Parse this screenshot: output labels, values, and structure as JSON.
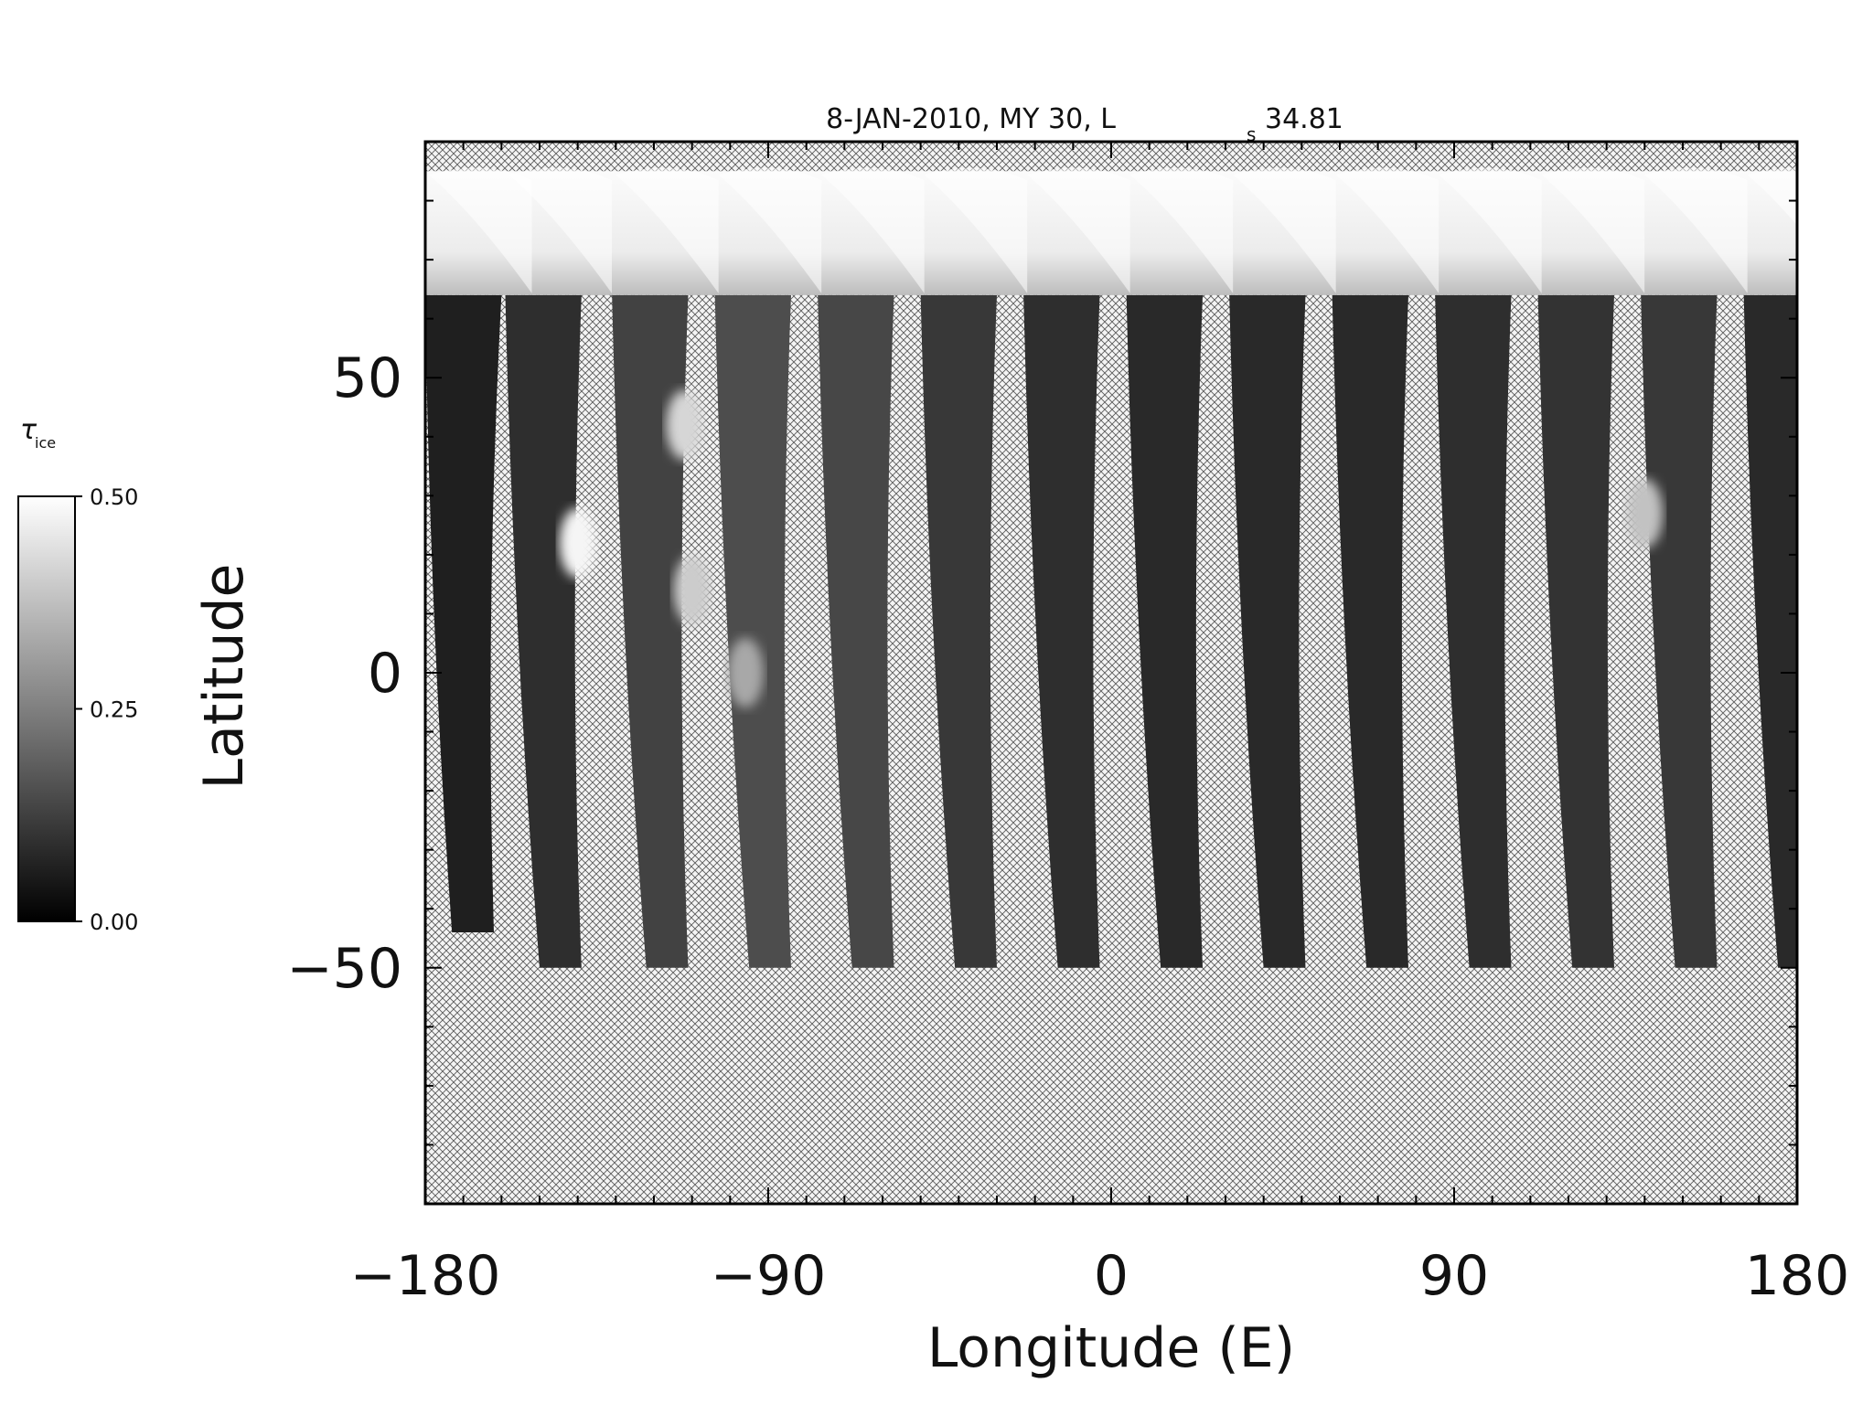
{
  "chart_data": {
    "type": "heatmap",
    "title": "8-JAN-2010, MY 30,  L",
    "title_sub": "s",
    "title_value": "34.81",
    "xlabel": "Longitude (E)",
    "ylabel": "Latitude",
    "xlim": [
      -180,
      180
    ],
    "ylim": [
      -90,
      90
    ],
    "x_ticks": [
      -180,
      -90,
      0,
      90,
      180
    ],
    "x_tick_labels": [
      "−180",
      "−90",
      "0",
      "90",
      "180"
    ],
    "y_ticks": [
      -50,
      0,
      50
    ],
    "y_tick_labels": [
      "−50",
      "0",
      "50"
    ],
    "x_minor_step": 10,
    "y_minor_step": 10,
    "grid": false,
    "no_data": "crosshatch",
    "polar_cap": {
      "lat_min": 64,
      "lat_max": 85,
      "value": 0.45
    },
    "swaths": [
      {
        "lon_top": -180,
        "lon_bottom": -173,
        "lat_bottom": -44,
        "value": 0.06
      },
      {
        "lon_top": -159,
        "lon_bottom": -150,
        "lat_bottom": -50,
        "value": 0.09
      },
      {
        "lon_top": -131,
        "lon_bottom": -122,
        "lat_bottom": -50,
        "value": 0.13
      },
      {
        "lon_top": -104,
        "lon_bottom": -95,
        "lat_bottom": -50,
        "value": 0.15
      },
      {
        "lon_top": -77,
        "lon_bottom": -68,
        "lat_bottom": -50,
        "value": 0.14
      },
      {
        "lon_top": -50,
        "lon_bottom": -41,
        "lat_bottom": -50,
        "value": 0.11
      },
      {
        "lon_top": -23,
        "lon_bottom": -14,
        "lat_bottom": -50,
        "value": 0.09
      },
      {
        "lon_top": 4,
        "lon_bottom": 13,
        "lat_bottom": -50,
        "value": 0.08
      },
      {
        "lon_top": 31,
        "lon_bottom": 40,
        "lat_bottom": -50,
        "value": 0.08
      },
      {
        "lon_top": 58,
        "lon_bottom": 67,
        "lat_bottom": -50,
        "value": 0.08
      },
      {
        "lon_top": 85,
        "lon_bottom": 94,
        "lat_bottom": -50,
        "value": 0.09
      },
      {
        "lon_top": 112,
        "lon_bottom": 121,
        "lat_bottom": -50,
        "value": 0.1
      },
      {
        "lon_top": 139,
        "lon_bottom": 148,
        "lat_bottom": -50,
        "value": 0.11
      },
      {
        "lon_top": 166,
        "lon_bottom": 175,
        "lat_bottom": -50,
        "value": 0.08
      }
    ],
    "bright_clouds": [
      {
        "lon": -140,
        "lat": 22,
        "value": 0.48
      },
      {
        "lon": -112,
        "lat": 42,
        "value": 0.42
      },
      {
        "lon": -110,
        "lat": 14,
        "value": 0.4
      },
      {
        "lon": -96,
        "lat": 0,
        "value": 0.33
      },
      {
        "lon": 140,
        "lat": 27,
        "value": 0.38
      }
    ],
    "colorbar": {
      "label": "τ",
      "label_sub": "ice",
      "min": 0.0,
      "max": 0.5,
      "tick_labels": [
        "0.50",
        "0.25",
        "0.00"
      ]
    }
  }
}
